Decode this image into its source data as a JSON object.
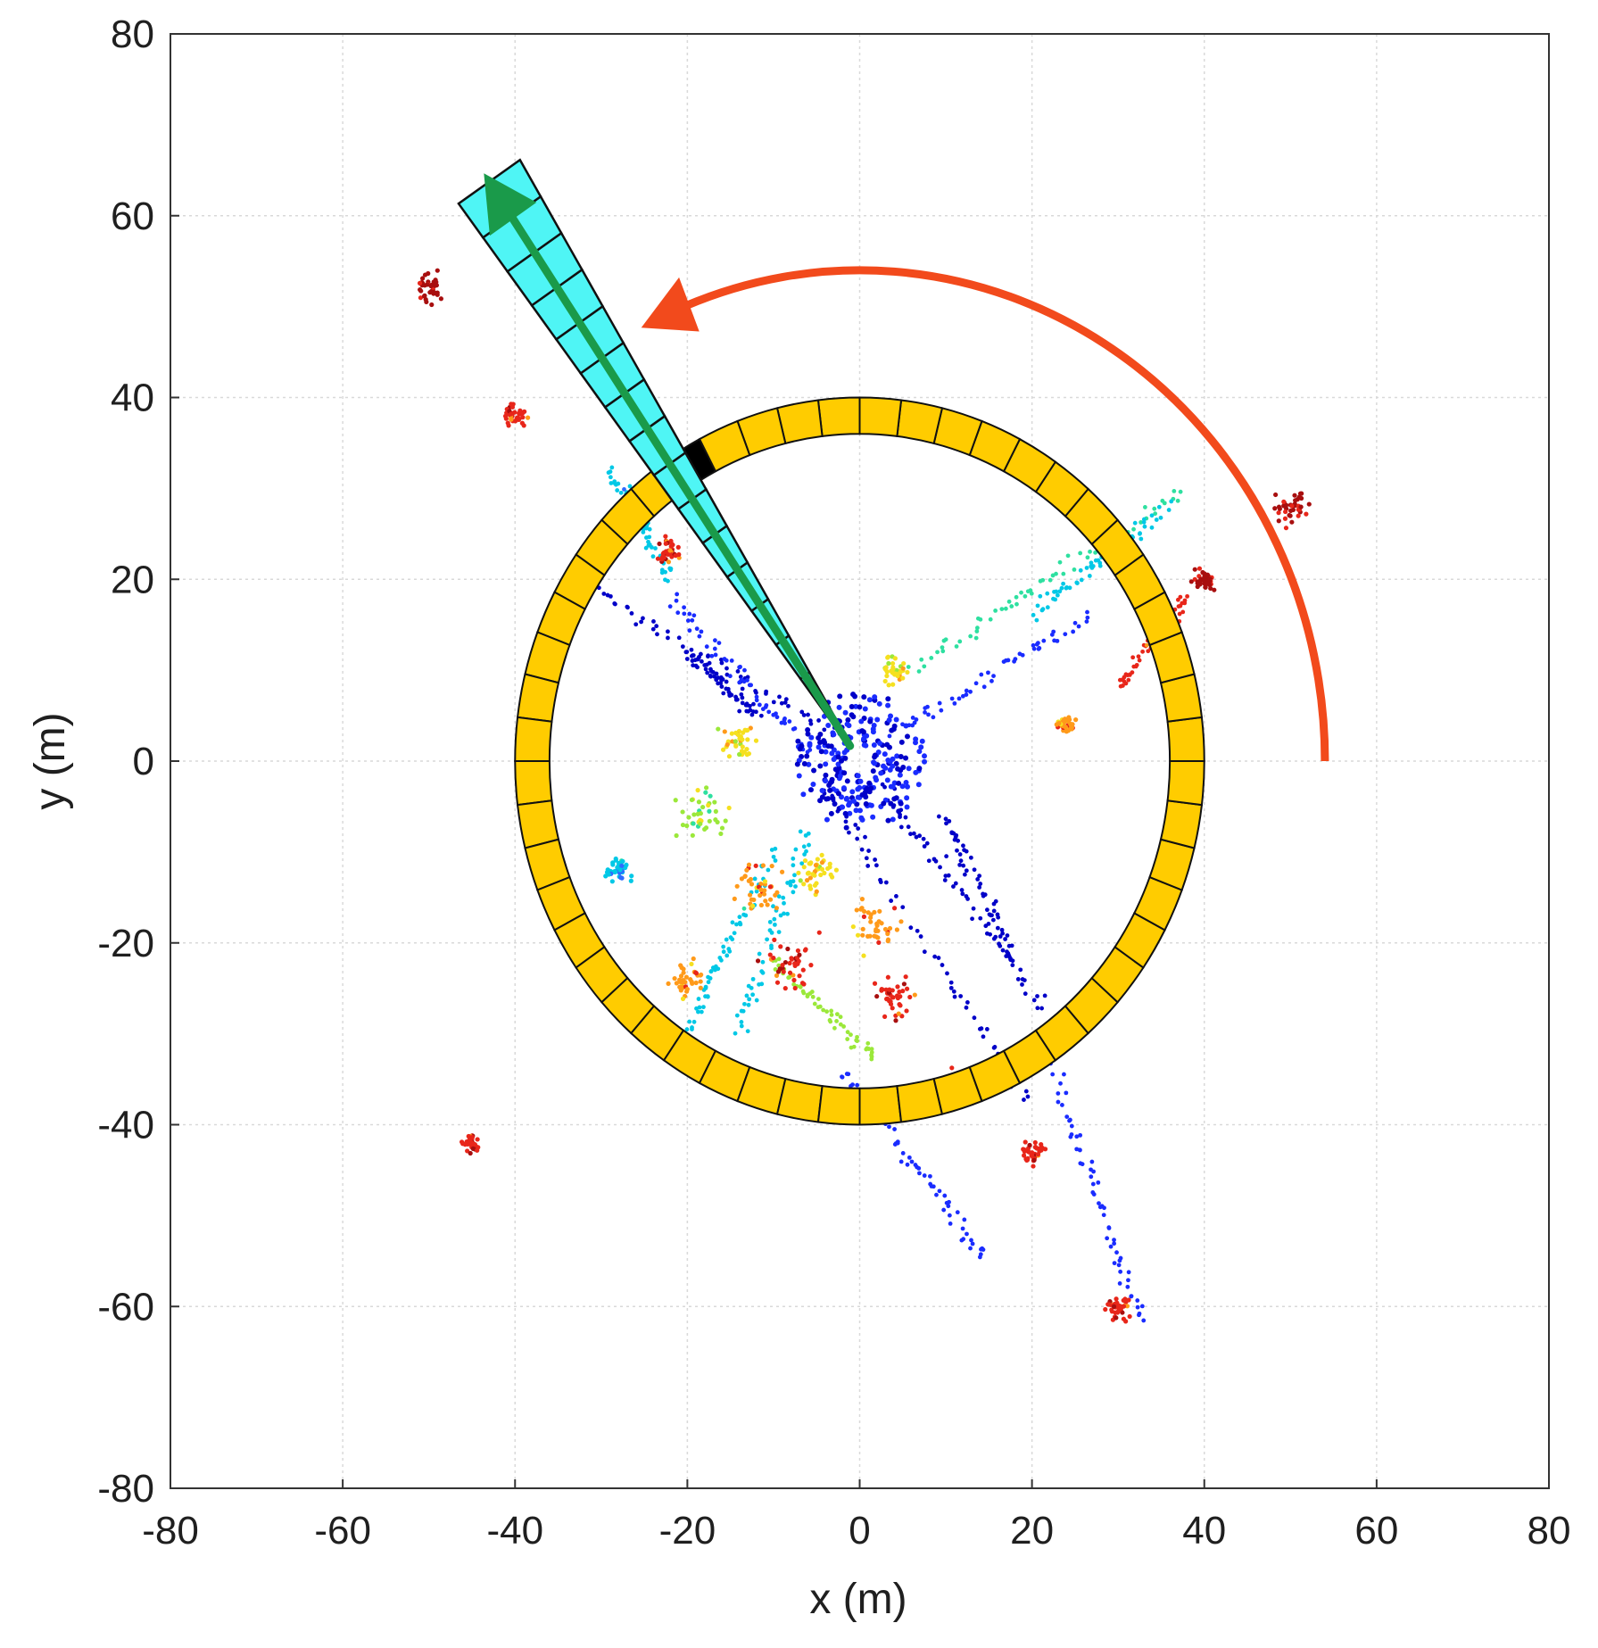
{
  "chart_data": {
    "type": "scatter",
    "title": "",
    "xlabel": "x (m)",
    "ylabel": "y (m)",
    "xlim": [
      -80,
      80
    ],
    "ylim": [
      -80,
      80
    ],
    "xticks": [
      "-80",
      "-60",
      "-40",
      "-20",
      "0",
      "20",
      "40",
      "60",
      "80"
    ],
    "yticks": [
      "80",
      "60",
      "40",
      "20",
      "0",
      "-20",
      "-40",
      "-60",
      "-80"
    ],
    "grid": true,
    "ring": {
      "inner_radius": 36,
      "outer_radius": 40,
      "segments": 52,
      "fill_color": "#ffcc00",
      "highlighted_segment_angle_deg": 124,
      "highlight_color": "#000000"
    },
    "sector": {
      "start_radius": 2,
      "end_radius": 77,
      "angle_deg": 124,
      "half_width_deg": 3.2,
      "bins": 16,
      "fill_color": "#4ff5f5",
      "arrow_color": "#1a9a4a"
    },
    "rotation_arrow": {
      "radius": 54,
      "start_angle_deg": 0,
      "end_angle_deg": 112,
      "color": "#f24a1c"
    },
    "point_cloud_colors": [
      "#0000c8",
      "#1a2cff",
      "#2f6bff",
      "#00c8e6",
      "#2ee0a0",
      "#9be83a",
      "#f5e020",
      "#ff9a1a",
      "#e8261a",
      "#a80f0f"
    ],
    "point_cloud_segments": [
      {
        "from": [
          -3,
          3
        ],
        "to": [
          -33,
          20
        ],
        "color_index": 0
      },
      {
        "from": [
          3,
          -3
        ],
        "to": [
          22,
          -28
        ],
        "color_index": 0
      },
      {
        "from": [
          -4,
          -3
        ],
        "to": [
          20,
          -38
        ],
        "color_index": 0
      },
      {
        "from": [
          4,
          3
        ],
        "to": [
          27,
          16
        ],
        "color_index": 1
      },
      {
        "from": [
          -6,
          1
        ],
        "to": [
          -22,
          18
        ],
        "color_index": 1
      },
      {
        "from": [
          -6,
          -8
        ],
        "to": [
          -14,
          -30
        ],
        "color_index": 3
      },
      {
        "from": [
          -10,
          -10
        ],
        "to": [
          -20,
          -30
        ],
        "color_index": 3
      },
      {
        "from": [
          6,
          10
        ],
        "to": [
          38,
          30
        ],
        "color_index": 4
      },
      {
        "from": [
          20,
          16
        ],
        "to": [
          36,
          28
        ],
        "color_index": 3
      },
      {
        "from": [
          -2,
          -34
        ],
        "to": [
          15,
          -55
        ],
        "color_index": 1
      },
      {
        "from": [
          22,
          -33
        ],
        "to": [
          33,
          -62
        ],
        "color_index": 1
      },
      {
        "from": [
          -29,
          32
        ],
        "to": [
          -22,
          20
        ],
        "color_index": 3
      },
      {
        "from": [
          30,
          8
        ],
        "to": [
          38,
          18
        ],
        "color_index": 8
      },
      {
        "from": [
          -10,
          -22
        ],
        "to": [
          2,
          -33
        ],
        "color_index": 5
      },
      {
        "from": [
          -12,
          5
        ],
        "to": [
          -20,
          12
        ],
        "color_index": 0
      },
      {
        "from": [
          10,
          -6
        ],
        "to": [
          18,
          -22
        ],
        "color_index": 0
      }
    ],
    "point_cloud_clusters": [
      {
        "center": [
          -50,
          52
        ],
        "spread": 2.5,
        "color_index": 9
      },
      {
        "center": [
          -40,
          38
        ],
        "spread": 2,
        "color_index": 8
      },
      {
        "center": [
          -22,
          23
        ],
        "spread": 2,
        "color_index": 8
      },
      {
        "center": [
          -14,
          2
        ],
        "spread": 3,
        "color_index": 6
      },
      {
        "center": [
          -18,
          -6
        ],
        "spread": 4,
        "color_index": 5
      },
      {
        "center": [
          -12,
          -14
        ],
        "spread": 4,
        "color_index": 7
      },
      {
        "center": [
          -8,
          -22
        ],
        "spread": 4,
        "color_index": 8
      },
      {
        "center": [
          -5,
          -12
        ],
        "spread": 3,
        "color_index": 6
      },
      {
        "center": [
          2,
          -18
        ],
        "spread": 4,
        "color_index": 7
      },
      {
        "center": [
          4,
          -26
        ],
        "spread": 3,
        "color_index": 8
      },
      {
        "center": [
          24,
          4
        ],
        "spread": 1.5,
        "color_index": 7
      },
      {
        "center": [
          20,
          -43
        ],
        "spread": 2,
        "color_index": 8
      },
      {
        "center": [
          30,
          -60
        ],
        "spread": 2,
        "color_index": 8
      },
      {
        "center": [
          50,
          28
        ],
        "spread": 3,
        "color_index": 9
      },
      {
        "center": [
          40,
          20
        ],
        "spread": 2,
        "color_index": 9
      },
      {
        "center": [
          -45,
          -42
        ],
        "spread": 1.5,
        "color_index": 8
      },
      {
        "center": [
          -20,
          -24
        ],
        "spread": 3,
        "color_index": 7
      },
      {
        "center": [
          -28,
          -12
        ],
        "spread": 2,
        "color_index": 3
      },
      {
        "center": [
          12,
          -36
        ],
        "spread": 2.5,
        "color_index": 8
      },
      {
        "center": [
          4,
          10
        ],
        "spread": 2,
        "color_index": 6
      }
    ]
  }
}
